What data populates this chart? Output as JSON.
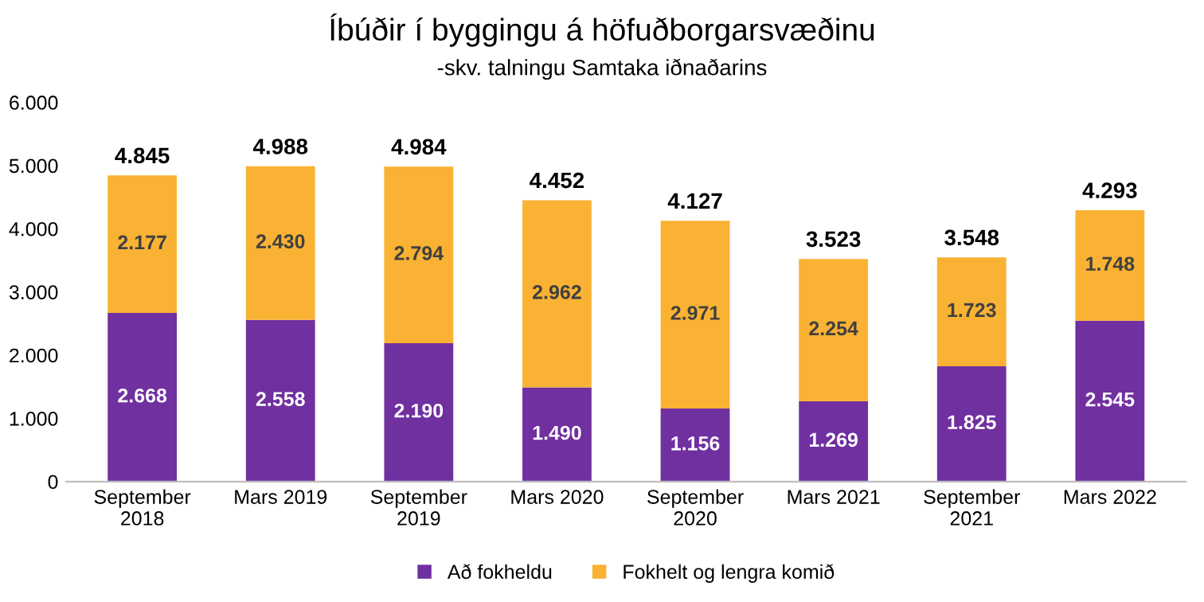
{
  "chart_data": {
    "type": "bar",
    "stacked": true,
    "title": "Íbúðir í byggingu á höfuðborgarsvæðinu",
    "subtitle": "-skv. talningu Samtaka iðnaðarins",
    "categories": [
      "September\n2018",
      "Mars 2019",
      "September\n2019",
      "Mars 2020",
      "September\n2020",
      "Mars 2021",
      "September\n2021",
      "Mars 2022"
    ],
    "series": [
      {
        "name": "Að fokheldu",
        "color": "#7030a0",
        "values": [
          2668,
          2558,
          2190,
          1490,
          1156,
          1269,
          1825,
          2545
        ],
        "value_labels": [
          "2.668",
          "2.558",
          "2.190",
          "1.490",
          "1.156",
          "1.269",
          "1.825",
          "2.545"
        ]
      },
      {
        "name": "Fokhelt og lengra komið",
        "color": "#f9b233",
        "values": [
          2177,
          2430,
          2794,
          2962,
          2971,
          2254,
          1723,
          1748
        ],
        "value_labels": [
          "2.177",
          "2.430",
          "2.794",
          "2.962",
          "2.971",
          "2.254",
          "1.723",
          "1.748"
        ]
      }
    ],
    "totals": [
      "4.845",
      "4.988",
      "4.984",
      "4.452",
      "4.127",
      "3.523",
      "3.548",
      "4.293"
    ],
    "ylim": [
      0,
      6000
    ],
    "yticks": [
      {
        "value": 0,
        "label": "0"
      },
      {
        "value": 1000,
        "label": "1.000"
      },
      {
        "value": 2000,
        "label": "2.000"
      },
      {
        "value": 3000,
        "label": "3.000"
      },
      {
        "value": 4000,
        "label": "4.000"
      },
      {
        "value": 5000,
        "label": "5.000"
      },
      {
        "value": 6000,
        "label": "6.000"
      }
    ],
    "grid": false,
    "legend": "bottom"
  }
}
